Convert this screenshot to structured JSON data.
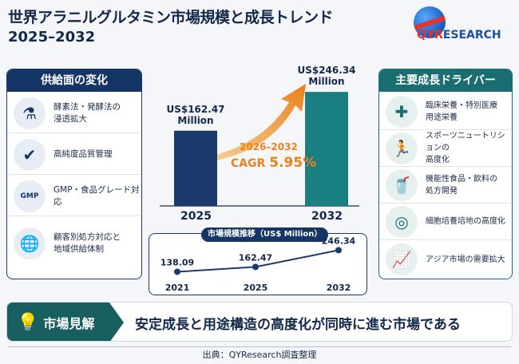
{
  "header": {
    "title": "世界アラニルグルタミン市場規模と成長トレンド",
    "subtitle": "2025–2032",
    "logo_text_main": "QYR",
    "logo_text_accent": "ESEARCH"
  },
  "left_panel": {
    "title": "供給面の変化",
    "items": [
      {
        "icon": "flask-gear-icon",
        "label": "酵素法・発酵法の\n浸透拡大"
      },
      {
        "icon": "shield-check-icon",
        "label": "高純度品質管理"
      },
      {
        "icon": "gmp-certificate-icon",
        "label": "GMP・食品グレード対応"
      },
      {
        "icon": "globe-people-icon",
        "label": "顧客別処方対応と\n地域供給体制"
      }
    ]
  },
  "right_panel": {
    "title": "主要成長ドライバー",
    "items": [
      {
        "icon": "medical-kit-icon",
        "label": "臨床栄養・特別医療\n用途栄養"
      },
      {
        "icon": "runner-icon",
        "label": "スポーツニュートリションの\n高度化"
      },
      {
        "icon": "functional-food-icon",
        "label": "機能性食品・飲料の\n処方開発"
      },
      {
        "icon": "cell-culture-icon",
        "label": "細胞培養培地の高度化"
      },
      {
        "icon": "growth-chart-icon",
        "label": "アジア市場の需要拡大"
      }
    ]
  },
  "chart_data": [
    {
      "type": "bar",
      "categories": [
        "2025",
        "2032"
      ],
      "values": [
        162.47,
        246.34
      ],
      "value_labels": [
        "US$162.47\nMillion",
        "US$246.34\nMillion"
      ],
      "colors": [
        "#1b3a6b",
        "#1a7f80"
      ],
      "cagr_period": "2026–2032",
      "cagr_prefix": "CAGR ",
      "cagr_value": "5.95%"
    },
    {
      "type": "line",
      "title": "市場規模推移（US$ Million）",
      "x": [
        "2021",
        "2025",
        "2032"
      ],
      "values": [
        138.09,
        162.47,
        246.34
      ],
      "value_labels": [
        "138.09",
        "162.47",
        "246.34"
      ]
    }
  ],
  "insight": {
    "label": "市場見解",
    "text": "安定成長と用途構造の高度化が同時に進む市場である"
  },
  "footer": {
    "source": "出典：QYResearch調査整理"
  }
}
